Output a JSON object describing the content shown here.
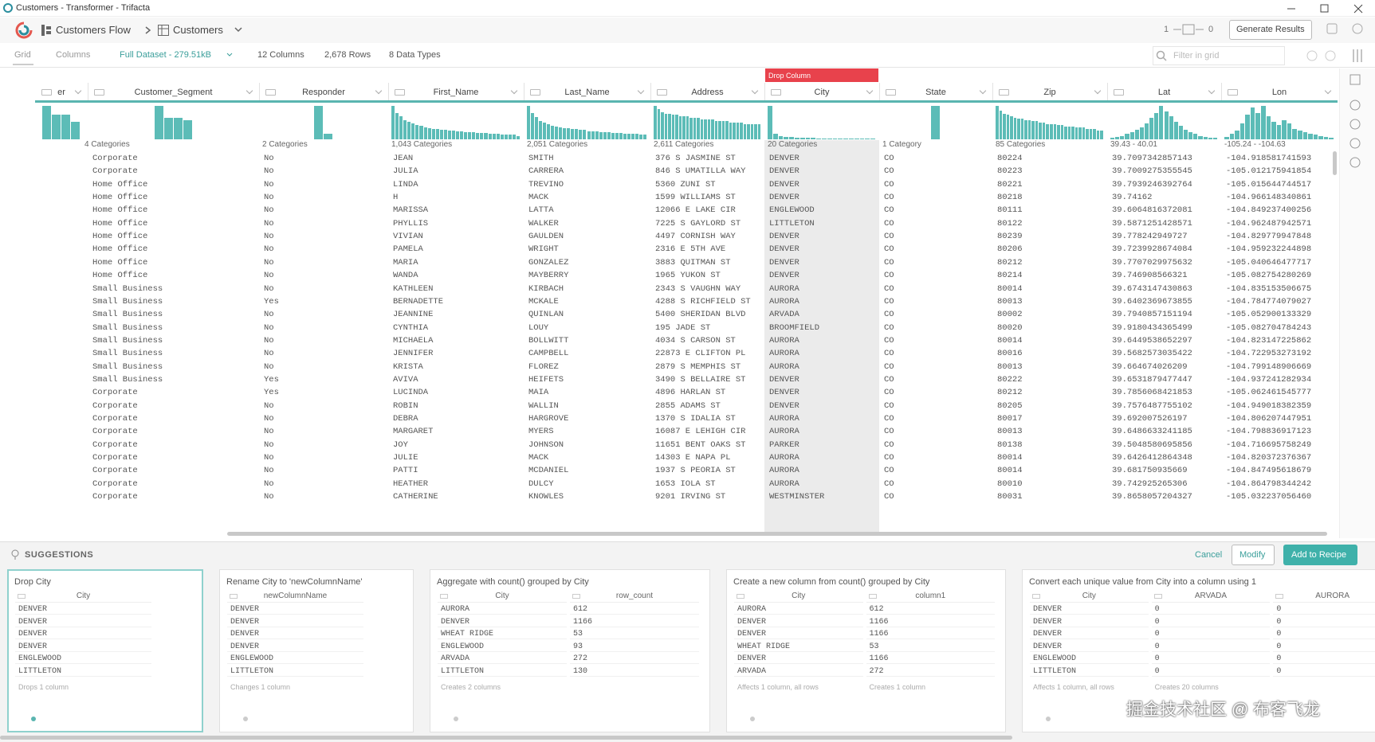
{
  "window": {
    "title": "Customers - Transformer - Trifacta"
  },
  "toolbar": {
    "flow": "Customers Flow",
    "dataset": "Customers",
    "counter_left": "1",
    "counter_right": "0",
    "generate": "Generate Results"
  },
  "tabs": {
    "grid": "Grid",
    "columns": "Columns",
    "sample": "Full Dataset - 279.51kB",
    "column_count": "12 Columns",
    "row_count": "2,678 Rows",
    "type_count": "8 Data Types",
    "filter": "Filter in grid"
  },
  "tooltip": "Drop Column",
  "grid": {
    "columns": [
      {
        "name": "er",
        "histogram": [
          38,
          28,
          28,
          20
        ]
      },
      {
        "name": "Customer_Segment",
        "summary": "4 Categories",
        "histogram": [
          38,
          24,
          24,
          22
        ]
      },
      {
        "name": "Responder",
        "summary": "2 Categories",
        "histogram": [
          38,
          6
        ]
      },
      {
        "name": "First_Name",
        "summary": "1,043 Categories",
        "histogram": [
          38,
          30,
          26,
          22,
          20,
          18,
          16,
          15,
          14,
          13,
          12,
          12,
          11,
          11,
          10,
          10,
          9,
          9,
          8,
          8,
          8,
          7,
          7,
          7,
          6,
          6,
          6,
          5,
          5,
          5,
          5,
          4
        ]
      },
      {
        "name": "Last_Name",
        "summary": "2,051 Categories",
        "histogram": [
          36,
          28,
          24,
          20,
          18,
          16,
          15,
          14,
          13,
          12,
          12,
          11,
          11,
          10,
          10,
          9,
          9,
          9,
          8,
          8,
          8,
          7,
          7,
          7,
          6,
          6,
          6,
          6,
          5,
          5
        ]
      },
      {
        "name": "Address",
        "summary": "2,611 Categories",
        "histogram": [
          22,
          20,
          18,
          17,
          17,
          16,
          16,
          15,
          15,
          15,
          14,
          14,
          14,
          13,
          13,
          13,
          13,
          12,
          12,
          12,
          12,
          11,
          11,
          11,
          11,
          10,
          10,
          10,
          10,
          10
        ]
      },
      {
        "name": "City",
        "summary": "20 Categories",
        "histogram": [
          38,
          6,
          4,
          3,
          3,
          2,
          2,
          2,
          2,
          1,
          1,
          1,
          1,
          1,
          1,
          1,
          1,
          1,
          1,
          1
        ]
      },
      {
        "name": "State",
        "summary": "1 Category",
        "histogram": [
          38
        ]
      },
      {
        "name": "Zip",
        "summary": "85 Categories",
        "histogram": [
          26,
          22,
          20,
          19,
          18,
          17,
          16,
          16,
          15,
          15,
          14,
          14,
          13,
          13,
          12,
          12,
          12,
          11,
          11,
          10,
          10,
          10,
          9,
          9,
          9,
          8,
          8,
          8,
          7,
          7
        ]
      },
      {
        "name": "Lat",
        "summary": "39.43 - 40.01",
        "histogram": [
          2,
          3,
          4,
          6,
          8,
          11,
          14,
          18,
          24,
          30,
          38,
          32,
          26,
          20,
          15,
          11,
          8,
          6,
          4,
          3,
          2,
          2
        ]
      },
      {
        "name": "Lon",
        "summary": "-105.24 - -104.63",
        "histogram": [
          3,
          6,
          10,
          18,
          28,
          36,
          30,
          38,
          26,
          20,
          16,
          22,
          18,
          12,
          10,
          8,
          6,
          5,
          4,
          3,
          2
        ]
      }
    ],
    "rows": [
      [
        "Corporate",
        "No",
        "JEAN",
        "SMITH",
        "376 S JASMINE ST",
        "DENVER",
        "CO",
        "80224",
        "39.7097342857143",
        "-104.918581741593"
      ],
      [
        "Corporate",
        "No",
        "JULIA",
        "CARRERA",
        "846 S UMATILLA WAY",
        "DENVER",
        "CO",
        "80223",
        "39.7009275355545",
        "-105.012175941854"
      ],
      [
        "Home Office",
        "No",
        "LINDA",
        "TREVINO",
        "5360 ZUNI ST",
        "DENVER",
        "CO",
        "80221",
        "39.7939246392764",
        "-105.015644744517"
      ],
      [
        "Home Office",
        "No",
        "H",
        "MACK",
        "1599 WILLIAMS ST",
        "DENVER",
        "CO",
        "80218",
        "39.74162",
        "-104.966148340861"
      ],
      [
        "Home Office",
        "No",
        "MARISSA",
        "LATTA",
        "12066 E LAKE CIR",
        "ENGLEWOOD",
        "CO",
        "80111",
        "39.6064816372081",
        "-104.849237400256"
      ],
      [
        "Home Office",
        "No",
        "PHYLLIS",
        "WALKER",
        "7225 S GAYLORD ST",
        "LITTLETON",
        "CO",
        "80122",
        "39.5871251428571",
        "-104.962487942571"
      ],
      [
        "Home Office",
        "No",
        "VIVIAN",
        "GAULDEN",
        "4497 CORNISH WAY",
        "DENVER",
        "CO",
        "80239",
        "39.778242949727",
        "-104.829779947848"
      ],
      [
        "Home Office",
        "No",
        "PAMELA",
        "WRIGHT",
        "2316 E 5TH AVE",
        "DENVER",
        "CO",
        "80206",
        "39.7239928674084",
        "-104.959232244898"
      ],
      [
        "Home Office",
        "No",
        "MARIA",
        "GONZALEZ",
        "3883 QUITMAN ST",
        "DENVER",
        "CO",
        "80212",
        "39.7707029975632",
        "-105.040646477717"
      ],
      [
        "Home Office",
        "No",
        "WANDA",
        "MAYBERRY",
        "1965 YUKON ST",
        "DENVER",
        "CO",
        "80214",
        "39.746908566321",
        "-105.082754280269"
      ],
      [
        "Small Business",
        "No",
        "KATHLEEN",
        "KIRBACH",
        "2343 S VAUGHN WAY",
        "AURORA",
        "CO",
        "80014",
        "39.6743147430863",
        "-104.835153506675"
      ],
      [
        "Small Business",
        "Yes",
        "BERNADETTE",
        "MCKALE",
        "4288 S RICHFIELD ST",
        "AURORA",
        "CO",
        "80013",
        "39.6402369673855",
        "-104.784774079027"
      ],
      [
        "Small Business",
        "No",
        "JEANNINE",
        "QUINLAN",
        "5400 SHERIDAN BLVD",
        "ARVADA",
        "CO",
        "80002",
        "39.7940857151194",
        "-105.052900133329"
      ],
      [
        "Small Business",
        "No",
        "CYNTHIA",
        "LOUY",
        "195 JADE ST",
        "BROOMFIELD",
        "CO",
        "80020",
        "39.9180434365499",
        "-105.082704784243"
      ],
      [
        "Small Business",
        "No",
        "MICHAELA",
        "BOLLWITT",
        "4034 S CARSON ST",
        "AURORA",
        "CO",
        "80014",
        "39.6449538652297",
        "-104.823147225862"
      ],
      [
        "Small Business",
        "No",
        "JENNIFER",
        "CAMPBELL",
        "22873 E CLIFTON PL",
        "AURORA",
        "CO",
        "80016",
        "39.5682573035422",
        "-104.722953273192"
      ],
      [
        "Small Business",
        "No",
        "KRISTA",
        "FLOREZ",
        "2879 S MEMPHIS ST",
        "AURORA",
        "CO",
        "80013",
        "39.664674026209",
        "-104.799148906669"
      ],
      [
        "Small Business",
        "Yes",
        "AVIVA",
        "HEIFETS",
        "3490 S BELLAIRE ST",
        "DENVER",
        "CO",
        "80222",
        "39.6531879477447",
        "-104.937241282934"
      ],
      [
        "Corporate",
        "Yes",
        "LUCINDA",
        "MAIA",
        "4896 HARLAN ST",
        "DENVER",
        "CO",
        "80212",
        "39.7856068421853",
        "-105.062461545777"
      ],
      [
        "Corporate",
        "No",
        "ROBIN",
        "WALLIN",
        "2855 ADAMS ST",
        "DENVER",
        "CO",
        "80205",
        "39.7576487755102",
        "-104.949018382359"
      ],
      [
        "Corporate",
        "No",
        "DEBRA",
        "HARGROVE",
        "1370 S IDALIA ST",
        "AURORA",
        "CO",
        "80017",
        "39.692007526197",
        "-104.806207447951"
      ],
      [
        "Corporate",
        "No",
        "MARGARET",
        "MYERS",
        "16087 E LEHIGH CIR",
        "AURORA",
        "CO",
        "80013",
        "39.6486633241185",
        "-104.798836917123"
      ],
      [
        "Corporate",
        "No",
        "JOY",
        "JOHNSON",
        "11651 BENT OAKS ST",
        "PARKER",
        "CO",
        "80138",
        "39.5048580695856",
        "-104.716695758249"
      ],
      [
        "Corporate",
        "No",
        "JULIE",
        "MACK",
        "14303 E NAPA PL",
        "AURORA",
        "CO",
        "80014",
        "39.6426412864348",
        "-104.820372376367"
      ],
      [
        "Corporate",
        "No",
        "PATTI",
        "MCDANIEL",
        "1937 S PEORIA ST",
        "AURORA",
        "CO",
        "80014",
        "39.681750935669",
        "-104.847495618679"
      ],
      [
        "Corporate",
        "No",
        "HEATHER",
        "DULCY",
        "1653 IOLA ST",
        "AURORA",
        "CO",
        "80010",
        "39.742925265306",
        "-104.864798344242"
      ],
      [
        "Corporate",
        "No",
        "CATHERINE",
        "KNOWLES",
        "9201 IRVING ST",
        "WESTMINSTER",
        "CO",
        "80031",
        "39.8658057204327",
        "-105.032237056460"
      ]
    ]
  },
  "suggestions": {
    "label": "SUGGESTIONS",
    "cancel": "Cancel",
    "modify": "Modify",
    "add": "Add to Recipe",
    "cards": [
      {
        "title": "Drop City",
        "columns": [
          {
            "header": "City",
            "values": [
              "DENVER",
              "DENVER",
              "DENVER",
              "DENVER",
              "ENGLEWOOD",
              "LITTLETON"
            ],
            "footer": "Drops 1 column"
          }
        ]
      },
      {
        "title": "Rename City to 'newColumnName'",
        "columns": [
          {
            "header": "newColumnName",
            "values": [
              "DENVER",
              "DENVER",
              "DENVER",
              "DENVER",
              "ENGLEWOOD",
              "LITTLETON"
            ],
            "footer": "Changes 1 column"
          }
        ]
      },
      {
        "title": "Aggregate with count() grouped by City",
        "columns": [
          {
            "header": "City",
            "values": [
              "AURORA",
              "DENVER",
              "WHEAT RIDGE",
              "ENGLEWOOD",
              "ARVADA",
              "LITTLETON"
            ],
            "footer": "Creates 2 columns"
          },
          {
            "header": "row_count",
            "values": [
              "612",
              "1166",
              "53",
              "93",
              "272",
              "130"
            ]
          }
        ]
      },
      {
        "title": "Create a new column from count() grouped by City",
        "columns": [
          {
            "header": "City",
            "values": [
              "AURORA",
              "DENVER",
              "DENVER",
              "WHEAT RIDGE",
              "DENVER",
              "ARVADA"
            ],
            "footer": "Affects 1 column, all rows"
          },
          {
            "header": "column1",
            "values": [
              "612",
              "1166",
              "1166",
              "53",
              "1166",
              "272"
            ],
            "footer": "Creates 1 column"
          }
        ]
      },
      {
        "title": "Convert each unique value from City into a column using 1",
        "columns": [
          {
            "header": "City",
            "values": [
              "DENVER",
              "DENVER",
              "DENVER",
              "DENVER",
              "ENGLEWOOD",
              "LITTLETON"
            ],
            "footer": "Affects 1 column, all rows"
          },
          {
            "header": "ARVADA",
            "values": [
              "0",
              "0",
              "0",
              "0",
              "0",
              "0"
            ],
            "footer": "Creates 20 columns"
          },
          {
            "header": "AURORA",
            "values": [
              "0",
              "0",
              "0",
              "0",
              "0",
              "0"
            ]
          }
        ]
      }
    ]
  },
  "watermark": "掘金技术社区 @ 布客飞龙"
}
